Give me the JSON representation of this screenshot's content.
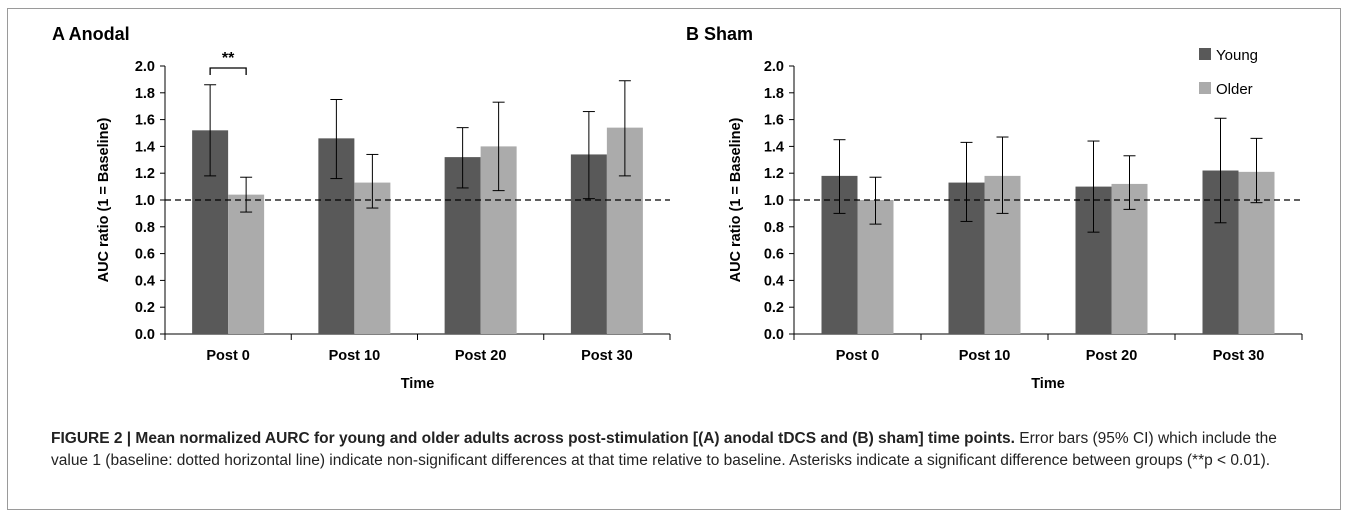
{
  "figure": {
    "caption_title": "FIGURE 2 | Mean normalized AURC for young and older adults across post-stimulation [(A) anodal tDCS and (B) sham] time points.",
    "caption_text": " Error bars (95% CI) which include the value 1 (baseline: dotted horizontal line) indicate non-significant differences at that time relative to baseline. Asterisks indicate a significant difference between groups (**p < 0.01)."
  },
  "colors": {
    "young": "#595959",
    "older": "#ababab",
    "axis": "#000000",
    "baseline": "#000000"
  },
  "chart_data": [
    {
      "type": "bar",
      "title": "A  Anodal",
      "xlabel": "Time",
      "ylabel": "AUC ratio (1 = Baseline)",
      "ylim": [
        0,
        2.0
      ],
      "yticks": [
        "0.0",
        "0.2",
        "0.4",
        "0.6",
        "0.8",
        "1.0",
        "1.2",
        "1.4",
        "1.6",
        "1.8",
        "2.0"
      ],
      "categories": [
        "Post 0",
        "Post 10",
        "Post 20",
        "Post 30"
      ],
      "baseline": 1.0,
      "series": [
        {
          "name": "Young",
          "values": [
            1.52,
            1.46,
            1.32,
            1.34
          ],
          "err_low": [
            1.18,
            1.16,
            1.09,
            1.01
          ],
          "err_high": [
            1.86,
            1.75,
            1.54,
            1.66
          ]
        },
        {
          "name": "Older",
          "values": [
            1.04,
            1.13,
            1.4,
            1.54
          ],
          "err_low": [
            0.91,
            0.94,
            1.07,
            1.18
          ],
          "err_high": [
            1.17,
            1.34,
            1.73,
            1.89
          ]
        }
      ],
      "significance": {
        "label": "**",
        "category_index": 0
      },
      "legend": null
    },
    {
      "type": "bar",
      "title": "B  Sham",
      "xlabel": "Time",
      "ylabel": "AUC ratio (1 = Baseline)",
      "ylim": [
        0,
        2.0
      ],
      "yticks": [
        "0.0",
        "0.2",
        "0.4",
        "0.6",
        "0.8",
        "1.0",
        "1.2",
        "1.4",
        "1.6",
        "1.8",
        "2.0"
      ],
      "categories": [
        "Post 0",
        "Post 10",
        "Post 20",
        "Post 30"
      ],
      "baseline": 1.0,
      "series": [
        {
          "name": "Young",
          "values": [
            1.18,
            1.13,
            1.1,
            1.22
          ],
          "err_low": [
            0.9,
            0.84,
            0.76,
            0.83
          ],
          "err_high": [
            1.45,
            1.43,
            1.44,
            1.61
          ]
        },
        {
          "name": "Older",
          "values": [
            1.0,
            1.18,
            1.12,
            1.21
          ],
          "err_low": [
            0.82,
            0.9,
            0.93,
            0.98
          ],
          "err_high": [
            1.17,
            1.47,
            1.33,
            1.46
          ]
        }
      ],
      "significance": null,
      "legend": {
        "position": "top-right",
        "entries": [
          "Young",
          "Older"
        ]
      }
    }
  ]
}
